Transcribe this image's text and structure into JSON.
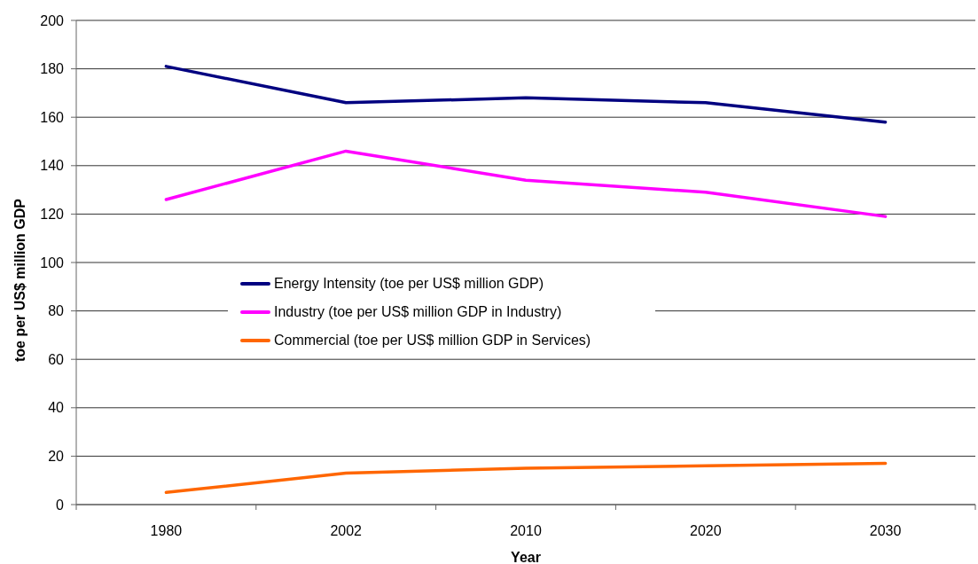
{
  "chart_data": {
    "type": "line",
    "xlabel": "Year",
    "ylabel": "toe per US$ million GDP",
    "categories": [
      "1980",
      "2002",
      "2010",
      "2020",
      "2030"
    ],
    "series": [
      {
        "name": "Energy Intensity (toe per US$ million GDP)",
        "color": "#000080",
        "values": [
          181,
          166,
          168,
          166,
          158
        ]
      },
      {
        "name": "Industry (toe per US$ million GDP in Industry)",
        "color": "#ff00ff",
        "values": [
          126,
          146,
          134,
          129,
          119
        ]
      },
      {
        "name": "Commercial (toe per US$ million GDP in Services)",
        "color": "#ff6600",
        "values": [
          5,
          13,
          15,
          16,
          17
        ]
      }
    ],
    "ylim": [
      0,
      200
    ],
    "yticks": [
      0,
      20,
      40,
      60,
      80,
      100,
      120,
      140,
      160,
      180,
      200
    ],
    "grid": "y",
    "legend": "left",
    "line_style": "solid"
  }
}
